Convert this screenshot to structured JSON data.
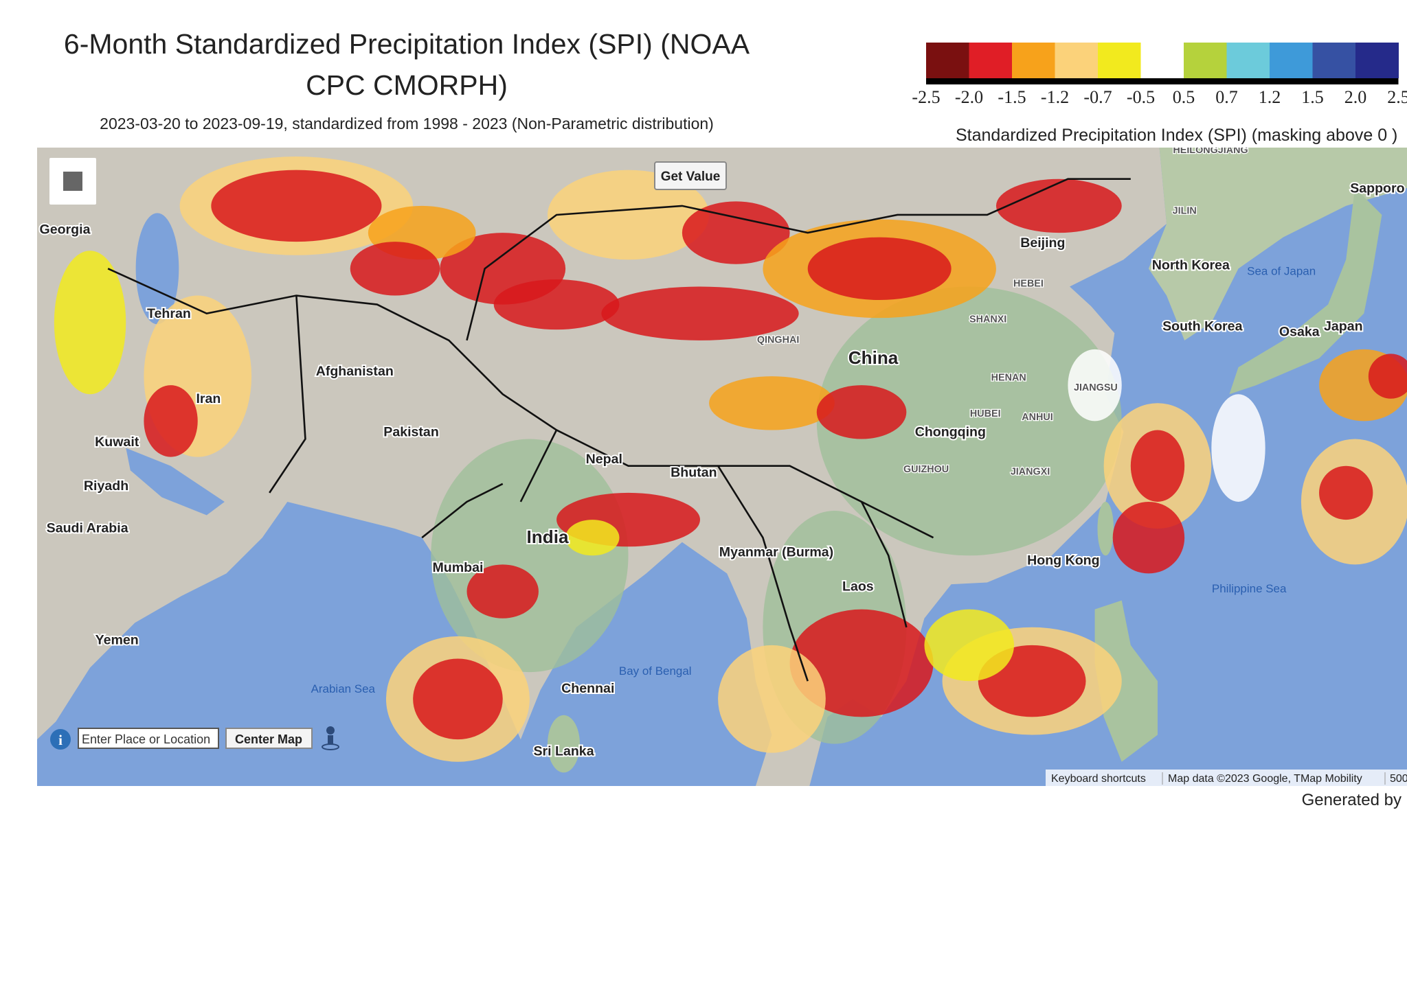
{
  "header": {
    "title_line1": "6-Month Standardized Precipitation Index (SPI) (NOAA",
    "title_line2": "CPC CMORPH)",
    "subtitle": "2023-03-20 to 2023-09-19, standardized from 1998 - 2023 (Non-Parametric distribution)"
  },
  "legend": {
    "colors": [
      "#7a1010",
      "#e01e26",
      "#f7a21b",
      "#fbd27a",
      "#f2ea1e",
      "#ffffff",
      "#b5d23c",
      "#6ccbdb",
      "#3e9ad9",
      "#3651a3",
      "#252a8a"
    ],
    "ticks": [
      "-2.5",
      "-2.0",
      "-1.5",
      "-1.2",
      "-0.7",
      "-0.5",
      "0.5",
      "0.7",
      "1.2",
      "1.5",
      "2.0",
      "2.5"
    ],
    "title": "Standardized Precipitation Index (SPI) (masking above 0 )"
  },
  "controls": {
    "get_value": "Get Value",
    "search_placeholder": "Enter Place or Location",
    "center_map": "Center Map"
  },
  "map": {
    "labels": [
      "Georgia",
      "Tehran",
      "Afghanistan",
      "Iran",
      "Kuwait",
      "Riyadh",
      "Saudi Arabia",
      "Yemen",
      "Pakistan",
      "India",
      "Nepal",
      "Bhutan",
      "Mumbai",
      "Chennai",
      "Sri Lanka",
      "China",
      "Chongqing",
      "Beijing",
      "North Korea",
      "South Korea",
      "Japan",
      "Osaka",
      "Sapporo",
      "Laos",
      "Myanmar (Burma)",
      "Hong Kong"
    ],
    "province_labels": [
      "SHANXI",
      "HENAN",
      "HUBEI",
      "ANHUI",
      "JIANGSU",
      "JIANGXI",
      "GUIZHOU",
      "HEBEI",
      "JILIN",
      "HEILONGJIANG",
      "QINGHAI"
    ],
    "sea_labels": [
      "Arabian Sea",
      "Bay of Bengal",
      "Sea of Japan",
      "Philippine Sea"
    ]
  },
  "attribution": {
    "shortcuts": "Keyboard shortcuts",
    "map_data": "Map data ©2023 Google, TMap Mobility",
    "scale": "500"
  },
  "footer": "Generated by"
}
